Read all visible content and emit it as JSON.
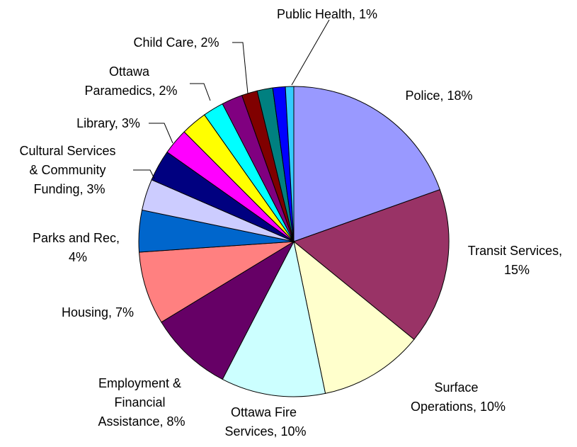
{
  "chart_data": {
    "type": "pie",
    "title": "",
    "start_angle_deg": 0,
    "direction": "clockwise",
    "slices": [
      {
        "label": "Police, 18%",
        "value": 18,
        "color": "#9999ff"
      },
      {
        "label": "Transit Services, 15%",
        "value": 15,
        "color": "#993366"
      },
      {
        "label": "Surface Operations, 10%",
        "value": 10,
        "color": "#ffffcc"
      },
      {
        "label": "Ottawa Fire Services, 10%",
        "value": 10,
        "color": "#ccffff"
      },
      {
        "label": "Employment & Financial Assistance, 8%",
        "value": 8,
        "color": "#660066"
      },
      {
        "label": "Housing, 7%",
        "value": 7,
        "color": "#ff8080"
      },
      {
        "label": "Parks and Rec, 4%",
        "value": 4,
        "color": "#0066cc"
      },
      {
        "label": "",
        "value": 3,
        "color": "#ccccff"
      },
      {
        "label": "Cultural Services & Community Funding, 3%",
        "value": 3,
        "color": "#000080"
      },
      {
        "label": "",
        "value": 2.5,
        "color": "#ff00ff"
      },
      {
        "label": "Library, 3%",
        "value": 2.5,
        "color": "#ffff00"
      },
      {
        "label": "Ottawa Paramedics, 2%",
        "value": 2,
        "color": "#00ffff"
      },
      {
        "label": "",
        "value": 2,
        "color": "#800080"
      },
      {
        "label": "Child Care, 2%",
        "value": 1.5,
        "color": "#800000"
      },
      {
        "label": "",
        "value": 1.5,
        "color": "#008080"
      },
      {
        "label": "",
        "value": 1.2,
        "color": "#0000ff"
      },
      {
        "label": "Public Health, 1%",
        "value": 0.8,
        "color": "#33ccff"
      }
    ],
    "label_lines": {
      "police": [
        "Police, 18%"
      ],
      "transit": [
        "Transit Services,",
        "15%"
      ],
      "surface": [
        "Surface",
        "Operations, 10%"
      ],
      "fire": [
        "Ottawa Fire",
        "Services, 10%"
      ],
      "employment": [
        "Employment &",
        "Financial",
        "Assistance, 8%"
      ],
      "housing": [
        "Housing, 7%"
      ],
      "parks": [
        "Parks and Rec,",
        "4%"
      ],
      "cultural": [
        "Cultural Services",
        "& Community",
        "Funding, 3%"
      ],
      "library": [
        "Library, 3%"
      ],
      "paramedics": [
        "Ottawa",
        "Paramedics, 2%"
      ],
      "childcare": [
        "Child Care, 2%"
      ],
      "publichealth": [
        "Public Health, 1%"
      ]
    }
  }
}
